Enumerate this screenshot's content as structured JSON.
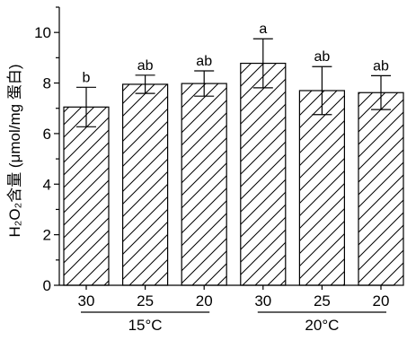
{
  "chart_data": {
    "type": "bar",
    "title": "",
    "xlabel": "",
    "ylabel": "H₂O₂含量 (μmol/mg 蛋白)",
    "ylim": [
      0,
      11
    ],
    "yticks": [
      0,
      2,
      4,
      6,
      8,
      10
    ],
    "bar_fill": "diagonal-hatch",
    "categories": [
      "30",
      "25",
      "20",
      "30",
      "25",
      "20"
    ],
    "groups": [
      {
        "label": "15°C",
        "categories": [
          "30",
          "25",
          "20"
        ]
      },
      {
        "label": "20°C",
        "categories": [
          "30",
          "25",
          "20"
        ]
      }
    ],
    "values": [
      7.05,
      7.95,
      7.98,
      8.78,
      7.7,
      7.62
    ],
    "errors": [
      0.78,
      0.36,
      0.5,
      0.97,
      0.95,
      0.67
    ],
    "significance": [
      "b",
      "ab",
      "ab",
      "a",
      "ab",
      "ab"
    ],
    "grid": false,
    "legend": "none"
  }
}
